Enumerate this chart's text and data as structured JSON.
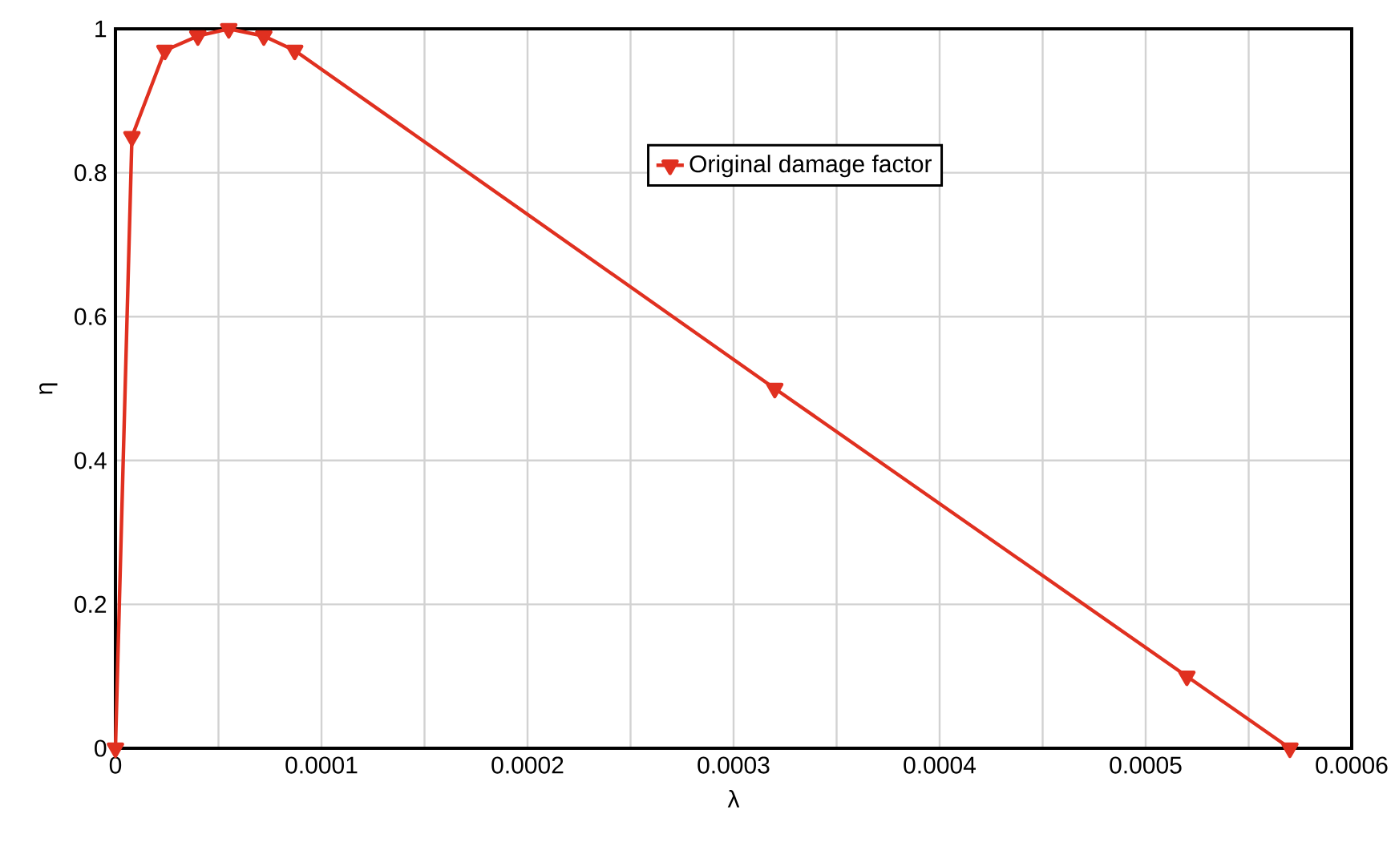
{
  "chart_data": {
    "type": "line",
    "xlabel": "λ",
    "ylabel": "η",
    "x": [
      0,
      8e-06,
      2.4e-05,
      4e-05,
      5.5e-05,
      7.2e-05,
      8.7e-05,
      0.00032,
      0.00052,
      0.00057
    ],
    "series": [
      {
        "name": "Original damage factor",
        "color": "#e03020",
        "values": [
          0,
          0.85,
          0.97,
          0.99,
          1.0,
          0.99,
          0.97,
          0.5,
          0.1,
          0
        ]
      }
    ],
    "xlim": [
      0,
      0.0006
    ],
    "ylim": [
      0,
      1
    ],
    "xticks": [
      0,
      0.0001,
      0.0002,
      0.0003,
      0.0004,
      0.0005,
      0.0006
    ],
    "yticks": [
      0,
      0.2,
      0.4,
      0.6,
      0.8,
      1
    ],
    "grid": true,
    "legend": "top right",
    "marker": "triangle",
    "line_style": "solid"
  }
}
